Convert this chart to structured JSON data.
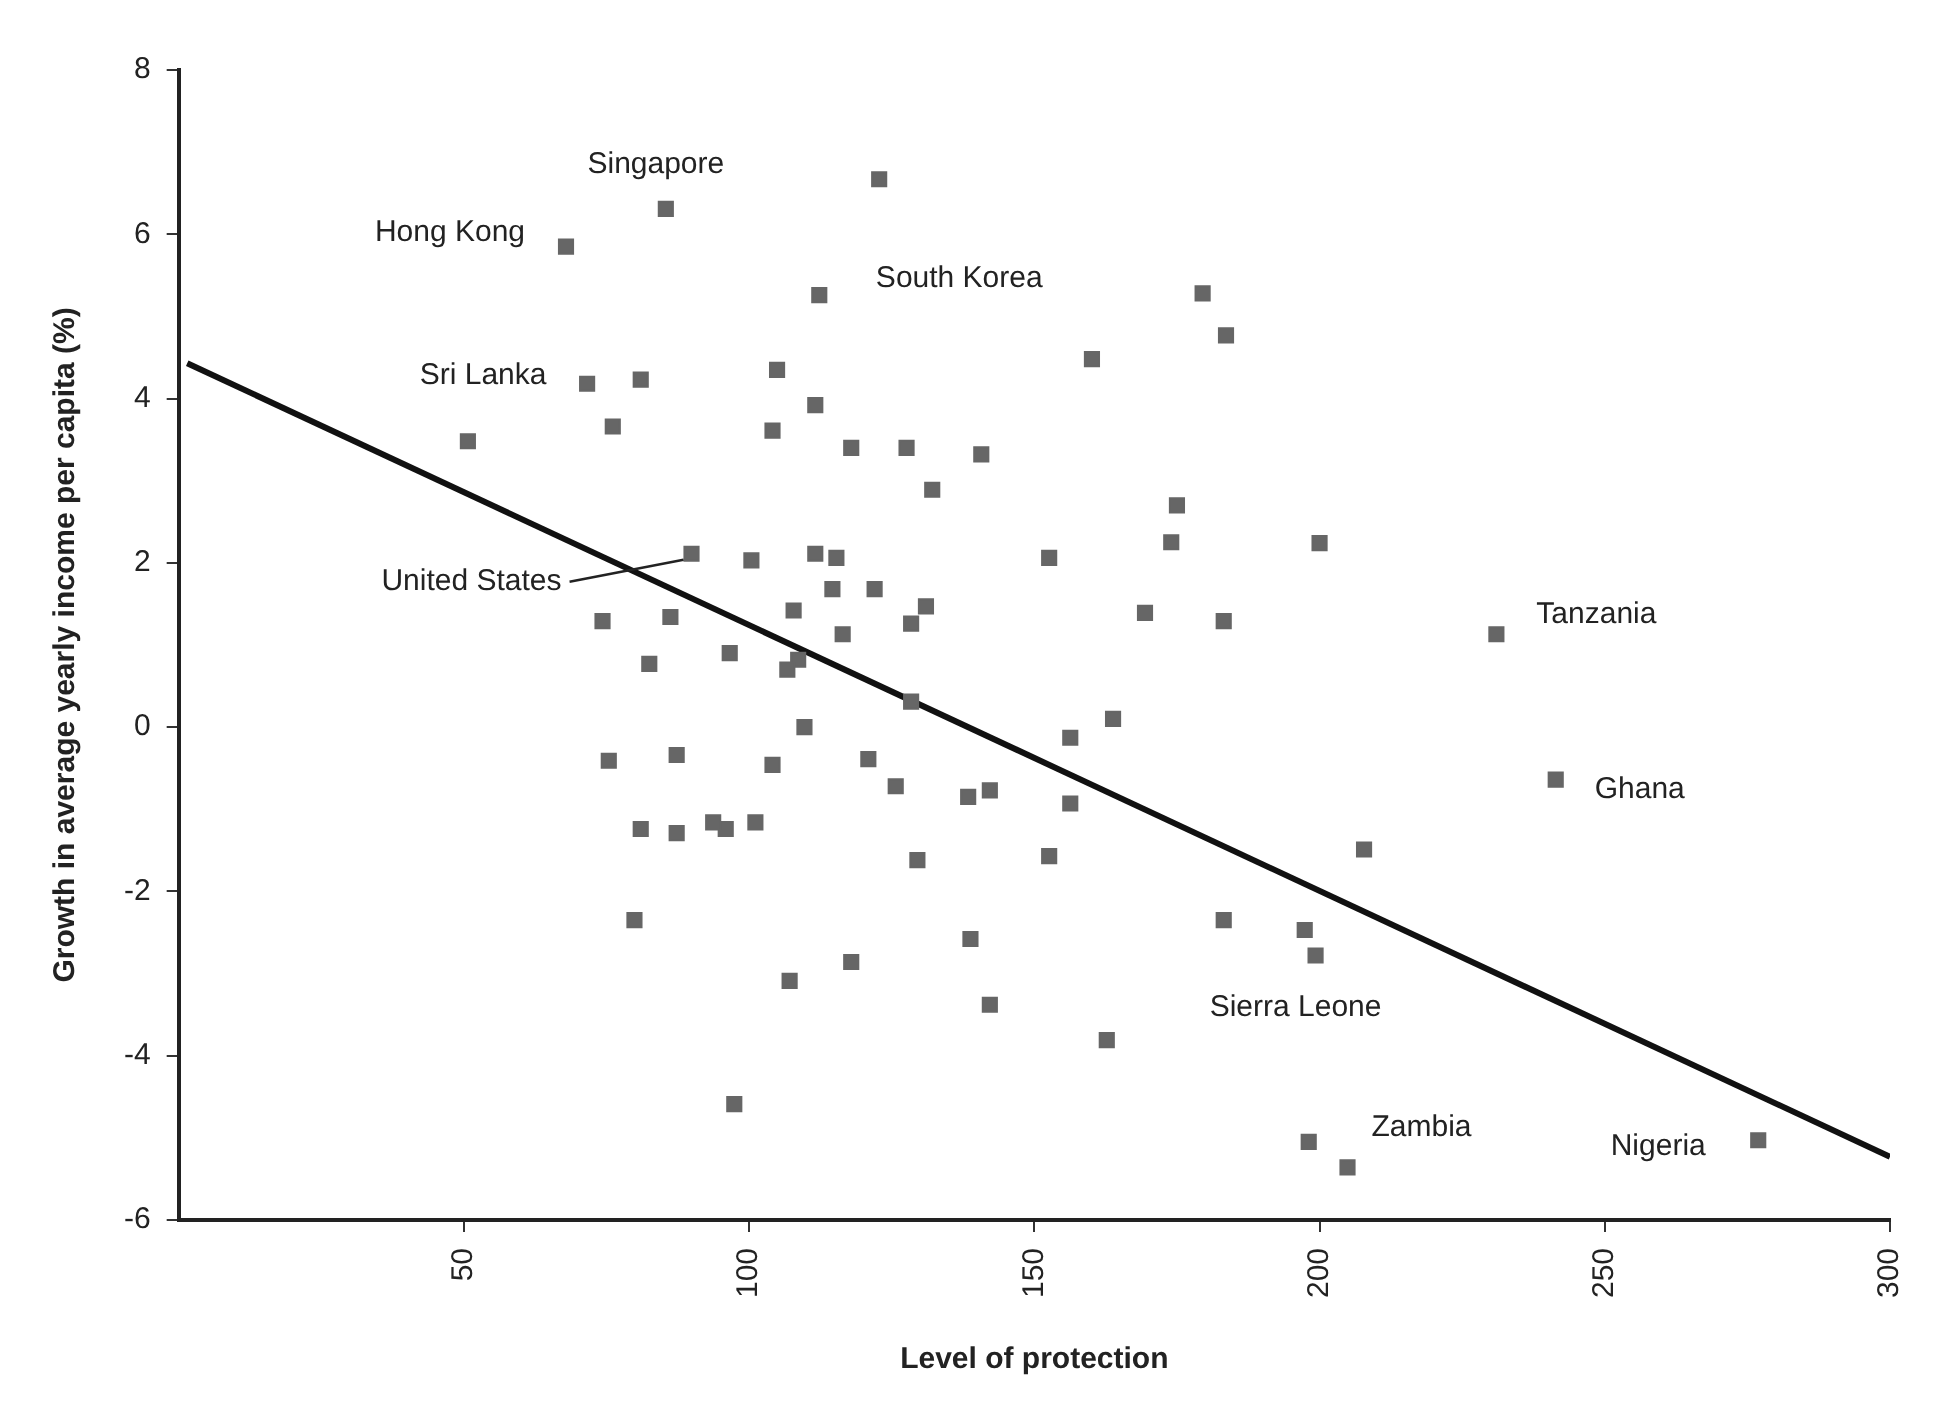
{
  "chart_data": {
    "type": "scatter",
    "xlabel": "Level of protection",
    "ylabel": "Growth in average yearly income per capita (%)",
    "xlim": [
      0,
      300
    ],
    "xticks": [
      50,
      100,
      150,
      200,
      250,
      300
    ],
    "ylim": [
      -6,
      8
    ],
    "yticks": [
      -6,
      -4,
      -2,
      0,
      2,
      4,
      6,
      8
    ],
    "grid": false,
    "legend": false,
    "marker": "square",
    "series": [
      {
        "color": "#666666",
        "x": [
          85.4,
          67.9,
          71.6,
          81,
          76.1,
          50.7,
          89.9,
          74.3,
          86.2,
          82.5,
          122.8,
          112.3,
          179.5,
          183.6,
          160.1,
          104.9,
          111.6,
          104.1,
          117.9,
          127.6,
          140.7,
          132.1,
          175,
          174,
          200,
          152.6,
          100.4,
          111.6,
          115.3,
          169.4,
          183.2,
          114.6,
          122,
          131,
          128.4,
          107.8,
          96.6,
          108.6,
          116.4,
          106.7,
          128.4,
          156.3,
          163.8,
          109.7,
          120.9,
          125.7,
          104.1,
          87.3,
          75.4,
          87.3,
          81,
          95.9,
          79.9,
          97.4,
          93.7,
          101.1,
          142.2,
          138.4,
          156.3,
          129.5,
          152.6,
          138.8,
          107.1,
          117.9,
          142.2,
          162.7,
          183.2,
          197.4,
          199.3,
          198.1,
          231,
          241.4,
          207.8,
          204.9,
          276.9
        ],
        "values": [
          6.31,
          5.85,
          4.18,
          4.23,
          3.66,
          3.48,
          2.11,
          1.29,
          1.34,
          0.77,
          6.67,
          5.26,
          5.28,
          4.77,
          4.48,
          4.35,
          3.92,
          3.61,
          3.4,
          3.4,
          3.32,
          2.89,
          2.7,
          2.25,
          2.24,
          2.06,
          2.03,
          2.11,
          2.06,
          1.39,
          1.29,
          1.68,
          1.68,
          1.47,
          1.26,
          1.42,
          0.9,
          0.82,
          1.13,
          0.7,
          0.31,
          -0.13,
          0.1,
          0,
          -0.39,
          -0.72,
          -0.46,
          -0.34,
          -0.41,
          -1.29,
          -1.24,
          -1.24,
          -2.35,
          -4.59,
          -1.16,
          -1.16,
          -0.77,
          -0.85,
          -0.93,
          -1.62,
          -1.57,
          -2.58,
          -3.09,
          -2.86,
          -3.38,
          -3.81,
          -2.35,
          -2.47,
          -2.78,
          -5.05,
          1.13,
          -0.64,
          -1.49,
          -5.36,
          -5.03
        ]
      },
      {
        "type": "line",
        "color": "#111111",
        "marker": "none",
        "x": [
          1.5,
          300
        ],
        "values": [
          4.43,
          -5.23
        ]
      }
    ],
    "annotations": [
      {
        "text": "Singapore",
        "x": 85.4,
        "y": 6.31
      },
      {
        "text": "Hong Kong",
        "x": 67.9,
        "y": 5.85
      },
      {
        "text": "South Korea",
        "x": 112.3,
        "y": 5.26
      },
      {
        "text": "Sri Lanka",
        "x": 71.6,
        "y": 4.18
      },
      {
        "text": "United States",
        "x": 89.9,
        "y": 2.11
      },
      {
        "text": "Tanzania",
        "x": 231,
        "y": 1.13
      },
      {
        "text": "Ghana",
        "x": 241.4,
        "y": -0.64
      },
      {
        "text": "Sierra Leone",
        "x": 199.3,
        "y": -2.78
      },
      {
        "text": "Zambia",
        "x": 204.9,
        "y": -5.36
      },
      {
        "text": "Nigeria",
        "x": 276.9,
        "y": -5.03
      }
    ]
  }
}
